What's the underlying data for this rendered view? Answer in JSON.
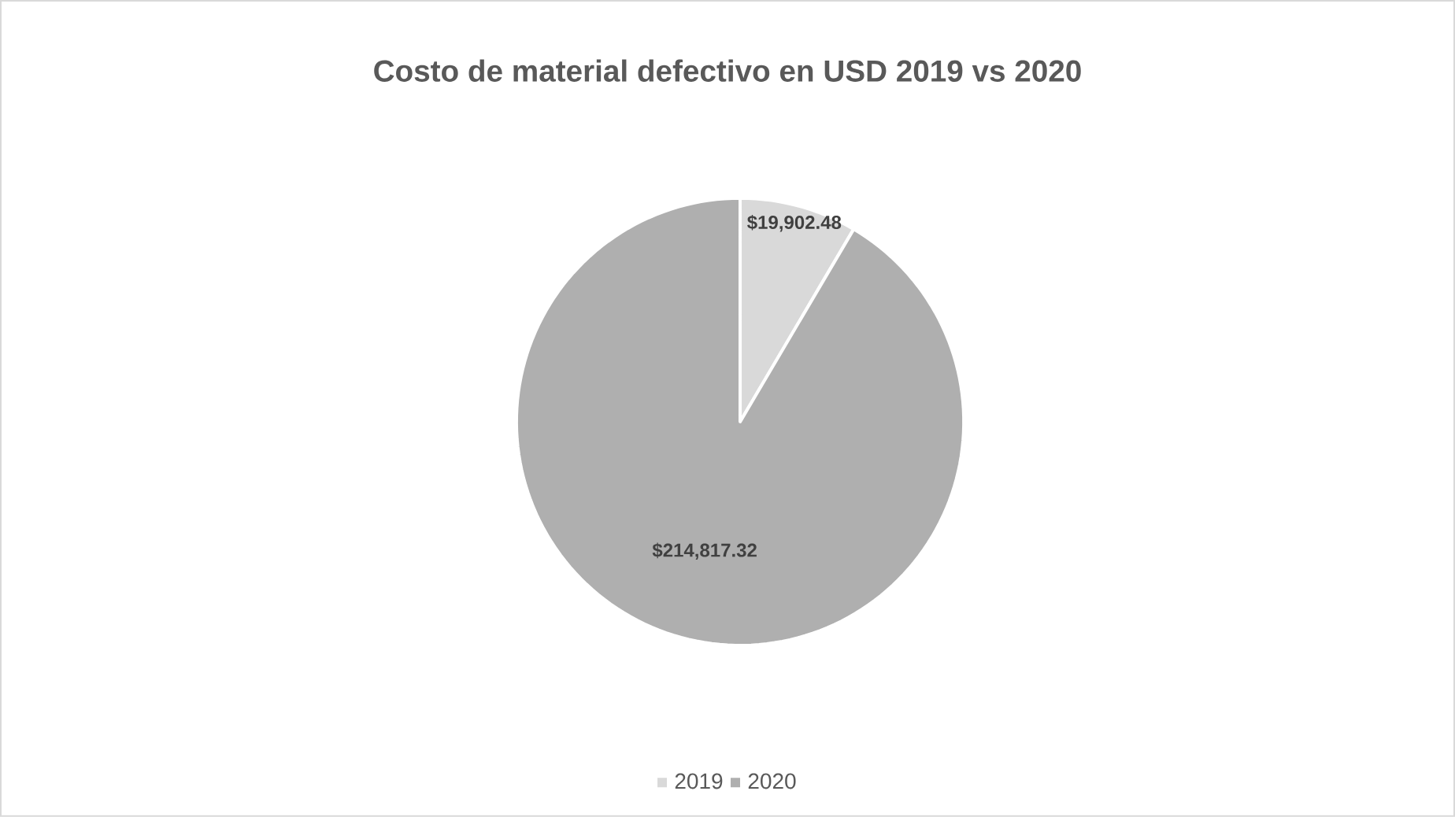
{
  "chart_data": {
    "type": "pie",
    "title": "Costo de material defectivo en USD 2019 vs 2020",
    "categories": [
      "2019",
      "2020"
    ],
    "values": [
      19902.48,
      214817.32
    ],
    "value_labels": [
      "$19,902.48",
      "$214,817.32"
    ],
    "colors": [
      "#d9d9d9",
      "#afafaf"
    ],
    "legend": "bottom"
  }
}
